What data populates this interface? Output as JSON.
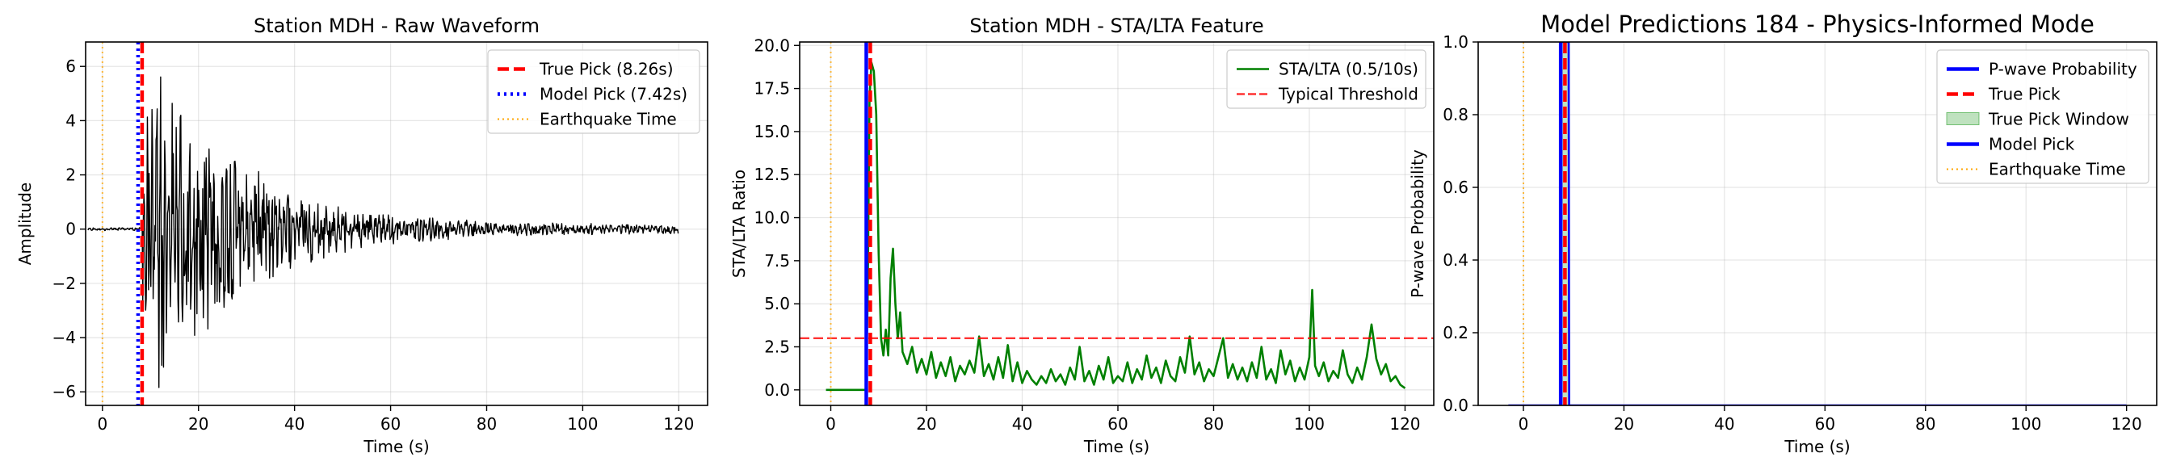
{
  "colors": {
    "waveform": "#000000",
    "true_pick": "#ff0000",
    "model_pick": "#0000ff",
    "earthquake": "#ffa500",
    "sta_lta": "#008000",
    "threshold": "#ff0000",
    "probability": "#0000ff",
    "true_window": "#2ca02c"
  },
  "chart_data": [
    {
      "type": "line",
      "title": "Station MDH - Raw Waveform",
      "xlabel": "Time (s)",
      "ylabel": "Amplitude",
      "xlim": [
        -3.5,
        126
      ],
      "ylim": [
        -6.5,
        6.9
      ],
      "xticks": [
        0,
        20,
        40,
        60,
        80,
        100,
        120
      ],
      "xtick_labels": [
        "0",
        "20",
        "40",
        "60",
        "80",
        "100",
        "120"
      ],
      "yticks": [
        -6,
        -4,
        -2,
        0,
        2,
        4,
        6
      ],
      "ytick_labels": [
        "−6",
        "−4",
        "−2",
        "0",
        "2",
        "4",
        "6"
      ],
      "grid": true,
      "legend_position": "upper right",
      "legend": [
        {
          "label": "True Pick (8.26s)",
          "style": "dashed",
          "color": "#ff0000"
        },
        {
          "label": "Model Pick (7.42s)",
          "style": "dotted",
          "color": "#0000ff"
        },
        {
          "label": "Earthquake Time",
          "style": "dotted-thin",
          "color": "#ffa500"
        }
      ],
      "series": [
        {
          "name": "Waveform",
          "color": "#000000",
          "x_start": -3,
          "x_end": 120,
          "noise_amplitude": 0.05,
          "onset": 8.26,
          "peak_amplitude": 6.0
        }
      ],
      "vlines": [
        {
          "x": 8.26,
          "label": "True Pick (8.26s)",
          "color": "#ff0000",
          "style": "dashed"
        },
        {
          "x": 7.42,
          "label": "Model Pick (7.42s)",
          "color": "#0000ff",
          "style": "dotted"
        },
        {
          "x": 0,
          "label": "Earthquake Time",
          "color": "#ffa500",
          "style": "dotted-thin"
        }
      ]
    },
    {
      "type": "line",
      "title": "Station MDH - STA/LTA Feature",
      "xlabel": "Time (s)",
      "ylabel": "STA/LTA Ratio",
      "xlim": [
        -6.5,
        126
      ],
      "ylim": [
        -0.9,
        20.2
      ],
      "xticks": [
        0,
        20,
        40,
        60,
        80,
        100,
        120
      ],
      "xtick_labels": [
        "0",
        "20",
        "40",
        "60",
        "80",
        "100",
        "120"
      ],
      "yticks": [
        0,
        2.5,
        5,
        7.5,
        10,
        12.5,
        15,
        17.5,
        20
      ],
      "ytick_labels": [
        "0.0",
        "2.5",
        "5.0",
        "7.5",
        "10.0",
        "12.5",
        "15.0",
        "17.5",
        "20.0"
      ],
      "grid": true,
      "legend_position": "upper right",
      "legend": [
        {
          "label": "STA/LTA (0.5/10s)",
          "style": "solid",
          "color": "#008000"
        },
        {
          "label": "Typical Threshold",
          "style": "dashed",
          "color": "#ff0000"
        }
      ],
      "series": [
        {
          "name": "STA/LTA (0.5/10s)",
          "color": "#008000",
          "points": [
            [
              -1,
              0
            ],
            [
              7.3,
              0
            ],
            [
              7.7,
              5
            ],
            [
              8.1,
              17
            ],
            [
              8.5,
              19
            ],
            [
              9,
              18.5
            ],
            [
              9.5,
              16
            ],
            [
              10,
              8
            ],
            [
              10.5,
              3
            ],
            [
              11,
              2
            ],
            [
              11.5,
              3.5
            ],
            [
              12,
              2
            ],
            [
              12.5,
              6.5
            ],
            [
              13,
              8.2
            ],
            [
              13.5,
              5
            ],
            [
              14,
              3
            ],
            [
              14.5,
              4.5
            ],
            [
              15,
              2.2
            ],
            [
              16,
              1.5
            ],
            [
              17,
              2.5
            ],
            [
              18,
              1
            ],
            [
              19,
              1.8
            ],
            [
              20,
              0.9
            ],
            [
              21,
              2.2
            ],
            [
              22,
              0.7
            ],
            [
              23,
              1.6
            ],
            [
              24,
              0.8
            ],
            [
              25,
              1.9
            ],
            [
              26,
              0.5
            ],
            [
              27,
              1.4
            ],
            [
              28,
              0.9
            ],
            [
              29,
              1.7
            ],
            [
              30,
              1
            ],
            [
              31,
              3.1
            ],
            [
              32,
              0.8
            ],
            [
              33,
              1.5
            ],
            [
              34,
              0.6
            ],
            [
              35,
              1.9
            ],
            [
              36,
              0.7
            ],
            [
              37,
              2.6
            ],
            [
              38,
              0.5
            ],
            [
              39,
              1.6
            ],
            [
              40,
              0.4
            ],
            [
              41,
              1.1
            ],
            [
              42,
              0.6
            ],
            [
              43,
              0.3
            ],
            [
              44,
              0.8
            ],
            [
              45,
              0.4
            ],
            [
              46,
              1.2
            ],
            [
              47,
              0.5
            ],
            [
              48,
              0.9
            ],
            [
              49,
              0.3
            ],
            [
              50,
              1.3
            ],
            [
              51,
              0.6
            ],
            [
              52,
              2.5
            ],
            [
              53,
              0.5
            ],
            [
              54,
              1.1
            ],
            [
              55,
              0.3
            ],
            [
              56,
              1.4
            ],
            [
              57,
              0.6
            ],
            [
              58,
              1.9
            ],
            [
              59,
              0.4
            ],
            [
              60,
              0.8
            ],
            [
              61,
              0.5
            ],
            [
              62,
              1.6
            ],
            [
              63,
              0.4
            ],
            [
              64,
              1.2
            ],
            [
              65,
              0.6
            ],
            [
              66,
              2
            ],
            [
              67,
              0.7
            ],
            [
              68,
              1.3
            ],
            [
              69,
              0.4
            ],
            [
              70,
              1.7
            ],
            [
              71,
              0.8
            ],
            [
              72,
              0.5
            ],
            [
              73,
              1.9
            ],
            [
              74,
              1
            ],
            [
              75,
              3.1
            ],
            [
              76,
              0.9
            ],
            [
              77,
              1.6
            ],
            [
              78,
              0.5
            ],
            [
              79,
              1.2
            ],
            [
              80,
              0.8
            ],
            [
              81,
              1.9
            ],
            [
              82,
              3
            ],
            [
              83,
              0.7
            ],
            [
              84,
              1.5
            ],
            [
              85,
              0.6
            ],
            [
              86,
              1.3
            ],
            [
              87,
              0.5
            ],
            [
              88,
              1.6
            ],
            [
              89,
              0.7
            ],
            [
              90,
              2.5
            ],
            [
              91,
              0.6
            ],
            [
              92,
              1.2
            ],
            [
              93,
              0.4
            ],
            [
              94,
              2.3
            ],
            [
              95,
              0.9
            ],
            [
              96,
              1.7
            ],
            [
              97,
              0.5
            ],
            [
              98,
              1.3
            ],
            [
              99,
              0.6
            ],
            [
              100,
              1.9
            ],
            [
              100.6,
              5.8
            ],
            [
              101.2,
              1.4
            ],
            [
              102,
              0.8
            ],
            [
              103,
              1.6
            ],
            [
              104,
              0.5
            ],
            [
              105,
              1.1
            ],
            [
              106,
              0.7
            ],
            [
              107,
              2.3
            ],
            [
              108,
              0.9
            ],
            [
              109,
              0.4
            ],
            [
              110,
              1.3
            ],
            [
              111,
              0.6
            ],
            [
              112,
              1.9
            ],
            [
              113,
              3.8
            ],
            [
              114,
              1.8
            ],
            [
              115,
              0.9
            ],
            [
              116,
              1.5
            ],
            [
              117,
              0.5
            ],
            [
              118,
              0.8
            ],
            [
              119,
              0.3
            ],
            [
              120,
              0.1
            ]
          ]
        }
      ],
      "hlines": [
        {
          "y": 3.0,
          "label": "Typical Threshold",
          "color": "#ff0000",
          "style": "dashed"
        }
      ],
      "vlines": [
        {
          "x": 8.26,
          "color": "#ff0000",
          "style": "dashed"
        },
        {
          "x": 7.42,
          "color": "#0000ff",
          "style": "solid"
        },
        {
          "x": 0,
          "color": "#ffa500",
          "style": "dotted-thin"
        }
      ]
    },
    {
      "type": "line",
      "title": "Model Predictions 184 - Physics-Informed Mode",
      "xlabel": "Time (s)",
      "ylabel": "P-wave Probability",
      "xlim": [
        -9,
        126
      ],
      "ylim": [
        0,
        1
      ],
      "xticks": [
        0,
        20,
        40,
        60,
        80,
        100,
        120
      ],
      "xtick_labels": [
        "0",
        "20",
        "40",
        "60",
        "80",
        "100",
        "120"
      ],
      "yticks": [
        0,
        0.2,
        0.4,
        0.6,
        0.8,
        1.0
      ],
      "ytick_labels": [
        "0.0",
        "0.2",
        "0.4",
        "0.6",
        "0.8",
        "1.0"
      ],
      "grid": true,
      "legend_position": "upper right",
      "legend": [
        {
          "label": "P-wave Probability",
          "style": "solid",
          "color": "#0000ff"
        },
        {
          "label": "True Pick",
          "style": "dashed",
          "color": "#ff0000"
        },
        {
          "label": "True Pick Window",
          "style": "patch",
          "color": "#2ca02c"
        },
        {
          "label": "Model Pick",
          "style": "solid",
          "color": "#0000ff"
        },
        {
          "label": "Earthquake Time",
          "style": "dotted-thin",
          "color": "#ffa500"
        }
      ],
      "series": [
        {
          "name": "P-wave Probability",
          "color": "#0000ff",
          "points": [
            [
              -3,
              0
            ],
            [
              7.3,
              0
            ],
            [
              7.42,
              1
            ],
            [
              9,
              1
            ],
            [
              9.1,
              0
            ],
            [
              120,
              0
            ]
          ]
        }
      ],
      "spans": [
        {
          "x0": 7.26,
          "x1": 9.26,
          "label": "True Pick Window",
          "color": "#2ca02c",
          "alpha": 0.3
        }
      ],
      "vlines": [
        {
          "x": 8.26,
          "color": "#ff0000",
          "style": "dashed"
        },
        {
          "x": 7.42,
          "color": "#0000ff",
          "style": "solid"
        },
        {
          "x": 0,
          "color": "#ffa500",
          "style": "dotted-thin"
        }
      ]
    }
  ]
}
